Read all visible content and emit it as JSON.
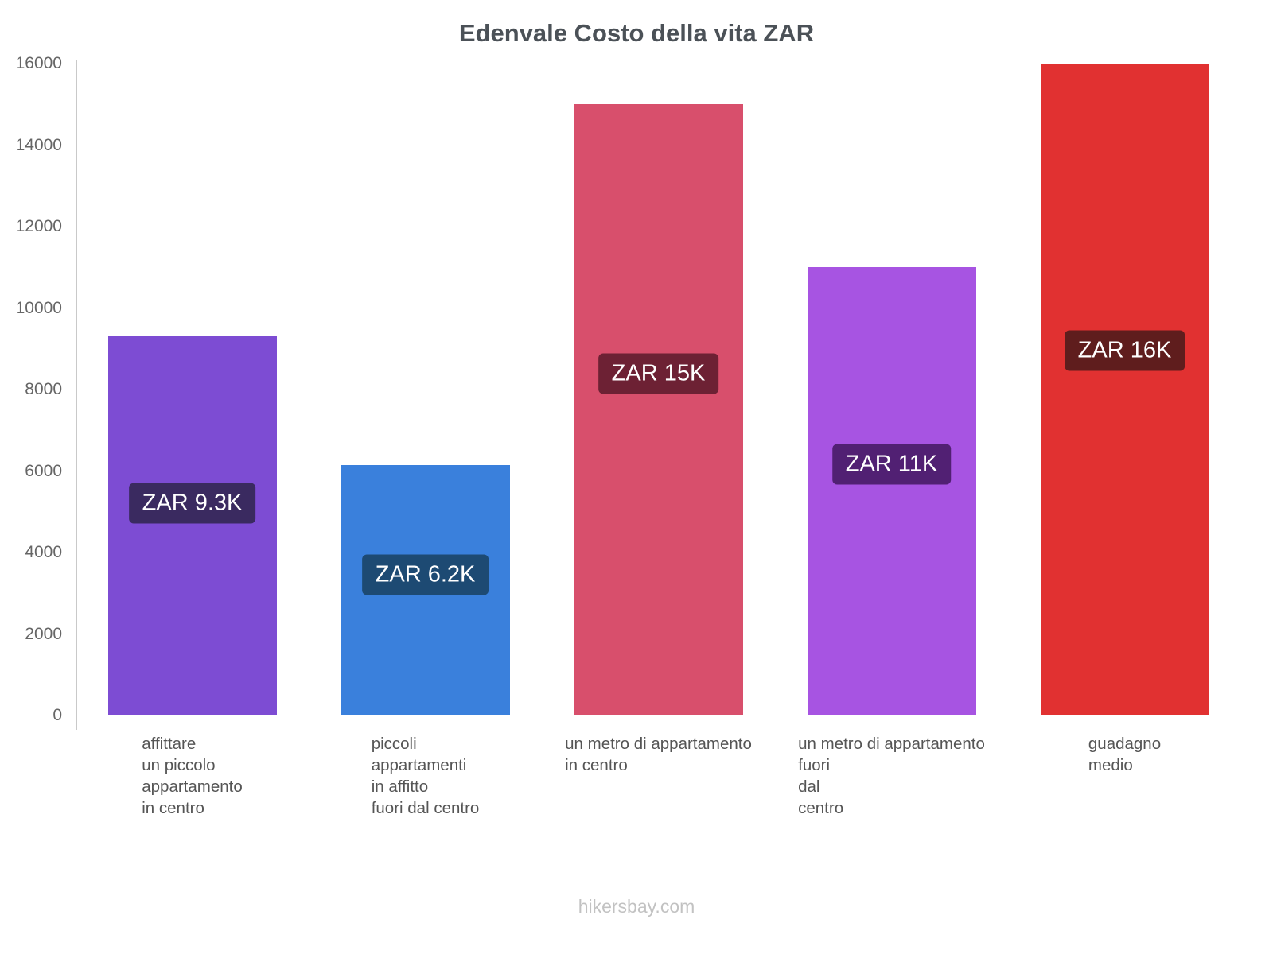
{
  "title": "Edenvale Costo della vita ZAR",
  "footer": "hikersbay.com",
  "chart_data": {
    "type": "bar",
    "title": "Edenvale Costo della vita ZAR",
    "categories": [
      [
        "affittare",
        "un piccolo",
        "appartamento",
        "in centro"
      ],
      [
        "piccoli",
        "appartamenti",
        "in affitto",
        "fuori dal centro"
      ],
      [
        "un metro di appartamento",
        "in centro"
      ],
      [
        "un metro di appartamento",
        "fuori",
        "dal",
        "centro"
      ],
      [
        "guadagno",
        "medio"
      ]
    ],
    "values": [
      9300,
      6150,
      15000,
      11000,
      16000
    ],
    "bar_labels": [
      "ZAR 9.3K",
      "ZAR 6.2K",
      "ZAR 15K",
      "ZAR 11K",
      "ZAR 16K"
    ],
    "bar_colors": [
      "#7d4cd3",
      "#3a80dc",
      "#d84f6c",
      "#a754e2",
      "#e13131"
    ],
    "label_bg_colors": [
      "#3a2a60",
      "#1d4a73",
      "#6d2134",
      "#512073",
      "#5f1d1d"
    ],
    "xlabel": "",
    "ylabel": "",
    "ylim": [
      0,
      16000
    ],
    "ytick_step": 2000,
    "yticks": [
      0,
      2000,
      4000,
      6000,
      8000,
      10000,
      12000,
      14000,
      16000
    ],
    "grid": false,
    "legend": false,
    "currency": "ZAR"
  }
}
